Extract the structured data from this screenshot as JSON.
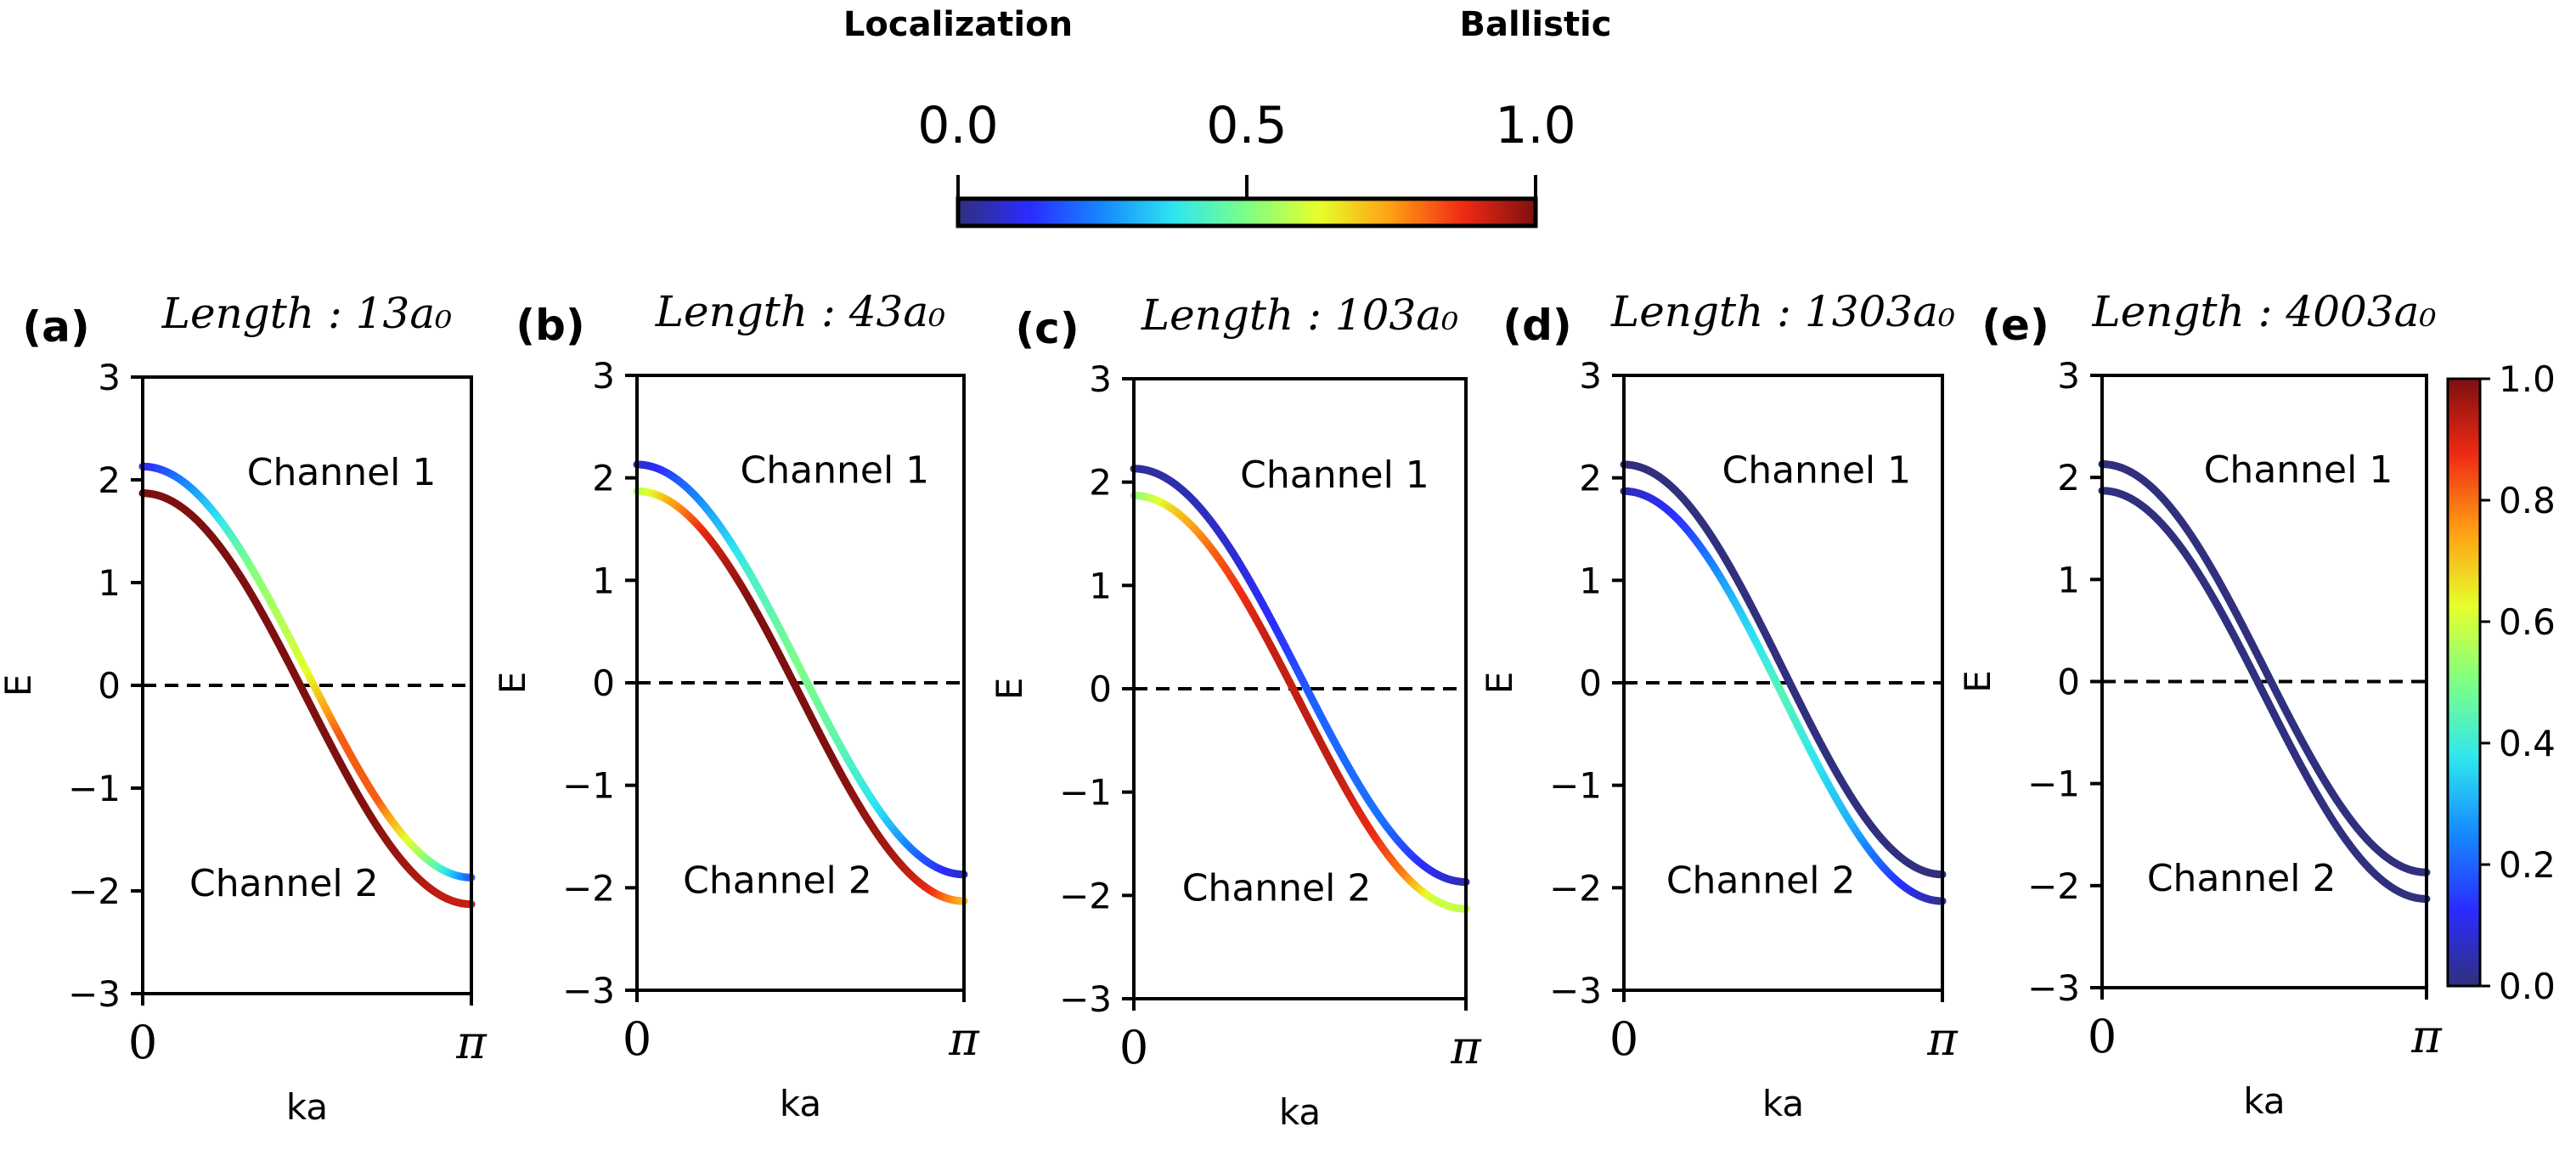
{
  "chart_data": {
    "type": "line",
    "top_colorbar": {
      "left_label": "Localization",
      "right_label": "Ballistic",
      "ticks": [
        "0.0",
        "0.5",
        "1.0"
      ]
    },
    "side_colorbar": {
      "ticks": [
        "0.0",
        "0.2",
        "0.4",
        "0.6",
        "0.8",
        "1.0"
      ],
      "range": [
        0,
        1
      ]
    },
    "colormap_stops": [
      "#30307e",
      "#2b2cff",
      "#1688ff",
      "#2fe6ef",
      "#7dff85",
      "#e6ff2b",
      "#ff9e14",
      "#ef2a14",
      "#7e1010"
    ],
    "shared": {
      "xlabel": "ka",
      "ylabel": "E",
      "x_tick_labels": [
        "0",
        "π"
      ],
      "xlim": [
        0,
        3.14159
      ],
      "ylim": [
        -3,
        3
      ],
      "y_ticks": [
        3,
        2,
        1,
        0,
        -1,
        -2,
        -3
      ],
      "y_tick_labels": [
        "3",
        "2",
        "1",
        "0",
        "−1",
        "−2",
        "−3"
      ],
      "zero_line": "dashed",
      "dispersion": "E = 2cos(ka) ± 0.13",
      "channel1_label": "Channel 1",
      "channel2_label": "Channel 2"
    },
    "panels": [
      {
        "panel_label": "(a)",
        "title": "Length : 13a₀",
        "channel1_transmission": [
          [
            0,
            0.1
          ],
          [
            0.18,
            0.3
          ],
          [
            0.33,
            0.5
          ],
          [
            0.5,
            0.62
          ],
          [
            0.6,
            0.82
          ],
          [
            0.72,
            0.82
          ],
          [
            0.82,
            0.6
          ],
          [
            0.9,
            0.45
          ],
          [
            1,
            0.2
          ]
        ],
        "channel2_transmission": [
          [
            0,
            1
          ],
          [
            0.65,
            1
          ],
          [
            0.78,
            0.97
          ],
          [
            0.9,
            0.93
          ],
          [
            1,
            0.92
          ]
        ]
      },
      {
        "panel_label": "(b)",
        "title": "Length : 43a₀",
        "channel1_transmission": [
          [
            0,
            0.05
          ],
          [
            0.22,
            0.28
          ],
          [
            0.35,
            0.42
          ],
          [
            0.5,
            0.5
          ],
          [
            0.62,
            0.45
          ],
          [
            0.75,
            0.36
          ],
          [
            0.88,
            0.18
          ],
          [
            1,
            0.07
          ]
        ],
        "channel2_transmission": [
          [
            0,
            0.55
          ],
          [
            0.1,
            0.72
          ],
          [
            0.22,
            0.9
          ],
          [
            0.35,
            1
          ],
          [
            0.6,
            1
          ],
          [
            0.8,
            0.95
          ],
          [
            0.9,
            0.88
          ],
          [
            1,
            0.72
          ]
        ]
      },
      {
        "panel_label": "(c)",
        "title": "Length : 103a₀",
        "channel1_transmission": [
          [
            0,
            0.02
          ],
          [
            0.3,
            0.08
          ],
          [
            0.45,
            0.14
          ],
          [
            0.55,
            0.2
          ],
          [
            0.75,
            0.22
          ],
          [
            0.88,
            0.12
          ],
          [
            1,
            0.05
          ]
        ],
        "channel2_transmission": [
          [
            0,
            0.5
          ],
          [
            0.12,
            0.68
          ],
          [
            0.25,
            0.82
          ],
          [
            0.4,
            0.92
          ],
          [
            0.6,
            0.93
          ],
          [
            0.72,
            0.88
          ],
          [
            0.82,
            0.78
          ],
          [
            0.9,
            0.6
          ],
          [
            1,
            0.58
          ]
        ]
      },
      {
        "panel_label": "(d)",
        "title": "Length : 1303a₀",
        "channel1_transmission": [
          [
            0,
            0
          ],
          [
            1,
            0
          ]
        ],
        "channel2_transmission": [
          [
            0,
            0.05
          ],
          [
            0.2,
            0.15
          ],
          [
            0.35,
            0.32
          ],
          [
            0.5,
            0.44
          ],
          [
            0.6,
            0.38
          ],
          [
            0.72,
            0.3
          ],
          [
            0.85,
            0.15
          ],
          [
            1,
            0.02
          ]
        ]
      },
      {
        "panel_label": "(e)",
        "title": "Length : 4003a₀",
        "channel1_transmission": [
          [
            0,
            0
          ],
          [
            1,
            0
          ]
        ],
        "channel2_transmission": [
          [
            0,
            0
          ],
          [
            1,
            0
          ]
        ]
      }
    ]
  }
}
